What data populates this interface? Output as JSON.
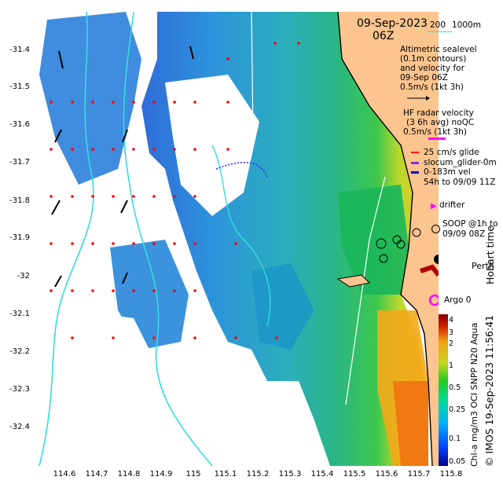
{
  "header": {
    "date": "09-Sep-2023",
    "time": "06Z"
  },
  "scale_bar": {
    "left_label": "200",
    "right_label": "1000m"
  },
  "legend": {
    "altimetry_lines": [
      "Altimetric sealevel",
      "(0.1m contours)",
      "and velocity for",
      "09-Sep 06Z",
      "0.5m/s (1kt 3h)"
    ],
    "hf_radar_lines": [
      "HF radar velocity",
      "(3 6h avg) noQC",
      "0.5m/s (1kt 3h)"
    ],
    "glide_label": "25 cm/s glide",
    "glider_label": "slocum_glider-0m",
    "vel_label": "0-183m vel",
    "vel_time": "54h to 09/09 11Z",
    "drifter_label": "drifter",
    "soop_label": "SOOP @1h to",
    "soop_time": "09/09 08Z",
    "argo_label": "Argo 0"
  },
  "place": {
    "name": "Perth"
  },
  "right_text": {
    "hobart": "Hobart time",
    "credit": "© IMOS 19-Sep-2023 11:56:41",
    "product": "Chl-a mg/m3 OCI SNPP N20 Aqua"
  },
  "axes": {
    "y_ticks": [
      "-31.4",
      "-31.5",
      "-31.6",
      "-31.7",
      "-31.8",
      "-31.9",
      "-32",
      "-32.1",
      "-32.2",
      "-32.3",
      "-32.4"
    ],
    "x_ticks": [
      "114.6",
      "114.7",
      "114.8",
      "114.9",
      "115",
      "115.1",
      "115.2",
      "115.3",
      "115.4",
      "115.5",
      "115.6",
      "115.7",
      "115.8"
    ]
  },
  "colorbar": {
    "ticks": [
      "4",
      "3",
      "2",
      "1",
      "0.5",
      "0.25",
      "0.1",
      "0.05"
    ]
  },
  "colors": {
    "land": "#fcc48e",
    "coast": "#000000",
    "bathy": "#33dddd",
    "arrow_red": "#ff0000",
    "argo": "#ff00ff"
  }
}
